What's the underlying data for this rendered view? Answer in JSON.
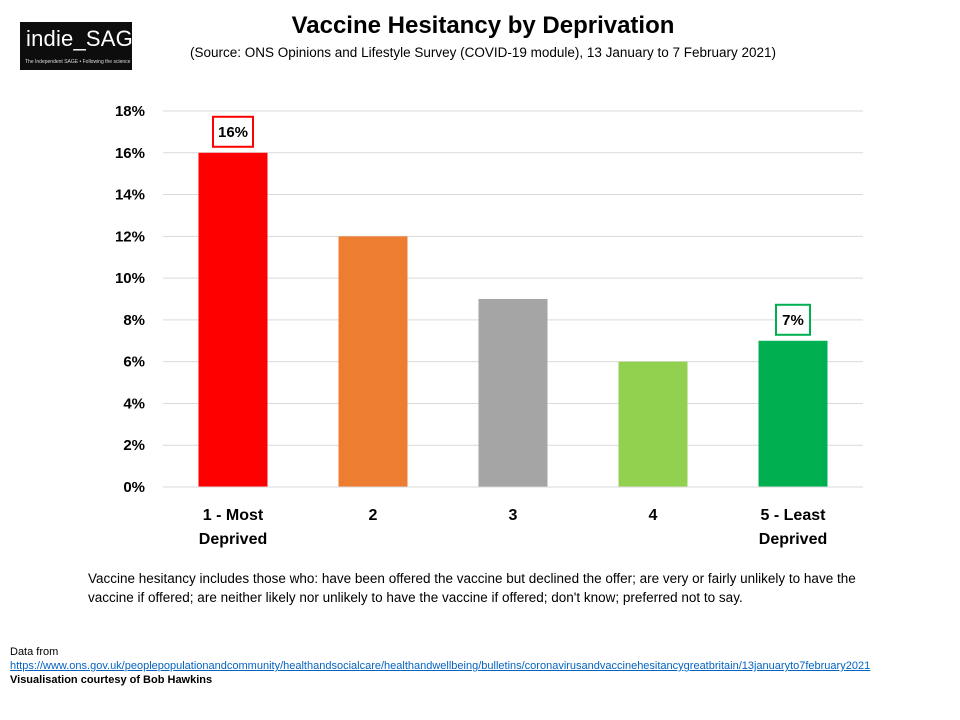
{
  "logo": {
    "name": "indie_SAGE",
    "tagline": "The Independent SAGE • Following the science"
  },
  "title": "Vaccine Hesitancy by Deprivation",
  "subtitle": "(Source: ONS Opinions and Lifestyle Survey (COVID-19 module), 13 January to 7 February 2021)",
  "chart_data": {
    "type": "bar",
    "categories": [
      [
        "1 - Most",
        "Deprived"
      ],
      [
        "2"
      ],
      [
        "3"
      ],
      [
        "4"
      ],
      [
        "5 - Least",
        "Deprived"
      ]
    ],
    "values": [
      16,
      12,
      9,
      6,
      7
    ],
    "colors": [
      "#ff0000",
      "#ed7d31",
      "#a5a5a5",
      "#92d050",
      "#00b050"
    ],
    "ylim": [
      0,
      18
    ],
    "yticks": [
      0,
      2,
      4,
      6,
      8,
      10,
      12,
      14,
      16,
      18
    ],
    "ytick_suffix": "%",
    "grid": true,
    "data_labels": [
      {
        "index": 0,
        "text": "16%",
        "border": "#ff0000"
      },
      {
        "index": 4,
        "text": "7%",
        "border": "#00b050"
      }
    ],
    "title": "Vaccine Hesitancy by Deprivation",
    "xlabel": "",
    "ylabel": ""
  },
  "note": "Vaccine hesitancy includes those who: have been offered the vaccine but declined the offer; are very or fairly unlikely to have the vaccine if offered; are neither likely nor unlikely to have the vaccine if offered; don't know; preferred not to say.",
  "footer": {
    "data_from": "Data from",
    "url": "https://www.ons.gov.uk/peoplepopulationandcommunity/healthandsocialcare/healthandwellbeing/bulletins/coronavirusandvaccinehesitancygreatbritain/13januaryto7february2021",
    "credit": "Visualisation  courtesy of Bob Hawkins"
  }
}
